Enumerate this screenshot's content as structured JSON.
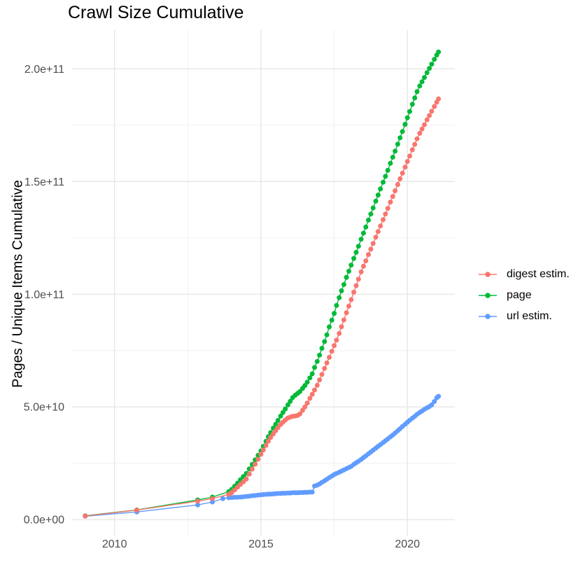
{
  "title": "Crawl Size Cumulative",
  "axes": {
    "x": {
      "range": [
        2008.55,
        2021.62
      ],
      "major_ticks": [
        {
          "value": 2010,
          "label": "2010"
        },
        {
          "value": 2015,
          "label": "2015"
        },
        {
          "value": 2020,
          "label": "2020"
        }
      ],
      "minor_ticks": [
        2012.5,
        2017.5
      ]
    },
    "y": {
      "label": "Pages / Unique Items Cumulative",
      "unit": "1e9 pages (axis labels in scientific notation)",
      "range": [
        -7.1,
        217.2
      ],
      "major_ticks": [
        {
          "value": 0,
          "label": "0.0e+00"
        },
        {
          "value": 50,
          "label": "5.0e+10"
        },
        {
          "value": 100,
          "label": "1.0e+11"
        },
        {
          "value": 150,
          "label": "1.5e+11"
        },
        {
          "value": 200,
          "label": "2.0e+11"
        }
      ],
      "minor_ticks": [
        25,
        75,
        125,
        175
      ]
    }
  },
  "legend": {
    "items": [
      {
        "label": "digest estim.",
        "color": "#F8766D"
      },
      {
        "label": "page",
        "color": "#00BA38"
      },
      {
        "label": "url estim.",
        "color": "#619CFF"
      }
    ]
  },
  "colors": {
    "digest": "#F8766D",
    "page": "#00BA38",
    "url": "#619CFF",
    "grid_major": "#e5e5e5",
    "grid_minor": "#f0f0f0"
  },
  "chart_data": {
    "type": "line",
    "title": "Crawl Size Cumulative",
    "xlabel": "",
    "ylabel": "Pages / Unique Items Cumulative",
    "value_unit": "billions (1e9) of pages / unique items",
    "xlim": [
      2008.55,
      2021.62
    ],
    "ylim_billions": [
      -7.1,
      217.2
    ],
    "grid": true,
    "legend_position": "right",
    "series": [
      {
        "name": "page",
        "color": "#00BA38",
        "points": [
          [
            2009.0,
            1.7
          ],
          [
            2010.76,
            4.3
          ],
          [
            2012.84,
            8.7
          ],
          [
            2013.34,
            10.0
          ],
          [
            2013.9,
            12.4
          ],
          [
            2014.0,
            13.4
          ],
          [
            2014.1,
            14.8
          ],
          [
            2014.2,
            16.2
          ],
          [
            2014.3,
            17.7
          ],
          [
            2014.4,
            19.1
          ],
          [
            2014.5,
            20.5
          ],
          [
            2014.6,
            22.5
          ],
          [
            2014.7,
            24.5
          ],
          [
            2014.8,
            26.5
          ],
          [
            2014.9,
            28.5
          ],
          [
            2015.0,
            30.5
          ],
          [
            2015.08,
            32.5
          ],
          [
            2015.17,
            34.7
          ],
          [
            2015.25,
            36.8
          ],
          [
            2015.33,
            38.6
          ],
          [
            2015.42,
            40.6
          ],
          [
            2015.5,
            42.3
          ],
          [
            2015.58,
            44.0
          ],
          [
            2015.67,
            45.9
          ],
          [
            2015.75,
            47.5
          ],
          [
            2015.83,
            49.1
          ],
          [
            2015.92,
            50.9
          ],
          [
            2016.0,
            52.5
          ],
          [
            2016.08,
            54.1
          ],
          [
            2016.17,
            55.2
          ],
          [
            2016.25,
            56.0
          ],
          [
            2016.33,
            56.8
          ],
          [
            2016.42,
            58.2
          ],
          [
            2016.5,
            59.5
          ],
          [
            2016.58,
            61.0
          ],
          [
            2016.67,
            62.9
          ],
          [
            2016.75,
            64.7
          ],
          [
            2016.83,
            67.5
          ],
          [
            2016.92,
            70.2
          ],
          [
            2017.0,
            73.0
          ],
          [
            2017.08,
            76.0
          ],
          [
            2017.17,
            79.0
          ],
          [
            2017.25,
            82.0
          ],
          [
            2017.33,
            85.5
          ],
          [
            2017.42,
            88.5
          ],
          [
            2017.5,
            91.5
          ],
          [
            2017.58,
            95.0
          ],
          [
            2017.67,
            98.5
          ],
          [
            2017.75,
            101.5
          ],
          [
            2017.83,
            104.3
          ],
          [
            2017.92,
            107.5
          ],
          [
            2018.0,
            110.2
          ],
          [
            2018.08,
            112.9
          ],
          [
            2018.17,
            115.9
          ],
          [
            2018.25,
            118.6
          ],
          [
            2018.33,
            121.3
          ],
          [
            2018.42,
            124.4
          ],
          [
            2018.5,
            127.1
          ],
          [
            2018.58,
            129.8
          ],
          [
            2018.67,
            132.9
          ],
          [
            2018.75,
            135.6
          ],
          [
            2018.83,
            138.3
          ],
          [
            2018.92,
            141.3
          ],
          [
            2019.0,
            144.0
          ],
          [
            2019.08,
            146.7
          ],
          [
            2019.17,
            149.7
          ],
          [
            2019.25,
            152.3
          ],
          [
            2019.33,
            155.0
          ],
          [
            2019.42,
            158.1
          ],
          [
            2019.5,
            160.8
          ],
          [
            2019.58,
            163.5
          ],
          [
            2019.67,
            166.6
          ],
          [
            2019.75,
            169.4
          ],
          [
            2019.83,
            172.2
          ],
          [
            2019.92,
            175.4
          ],
          [
            2020.0,
            178.3
          ],
          [
            2020.08,
            181.1
          ],
          [
            2020.17,
            184.3
          ],
          [
            2020.25,
            187.1
          ],
          [
            2020.33,
            189.9
          ],
          [
            2020.42,
            192.4
          ],
          [
            2020.5,
            194.3
          ],
          [
            2020.58,
            196.2
          ],
          [
            2020.67,
            198.3
          ],
          [
            2020.75,
            200.2
          ],
          [
            2020.83,
            202.1
          ],
          [
            2020.92,
            204.2
          ],
          [
            2021.0,
            206.1
          ],
          [
            2021.06,
            207.5
          ]
        ]
      },
      {
        "name": "url estim.",
        "color": "#619CFF",
        "points": [
          [
            2009.0,
            1.5
          ],
          [
            2010.76,
            3.4
          ],
          [
            2012.84,
            6.5
          ],
          [
            2013.34,
            7.8
          ],
          [
            2013.7,
            9.3
          ],
          [
            2013.9,
            9.7
          ],
          [
            2014.0,
            9.8
          ],
          [
            2014.1,
            9.9
          ],
          [
            2014.2,
            9.9
          ],
          [
            2014.3,
            10.0
          ],
          [
            2014.4,
            10.1
          ],
          [
            2014.5,
            10.3
          ],
          [
            2014.6,
            10.4
          ],
          [
            2014.7,
            10.6
          ],
          [
            2014.8,
            10.7
          ],
          [
            2014.9,
            10.9
          ],
          [
            2015.0,
            11.0
          ],
          [
            2015.08,
            11.1
          ],
          [
            2015.17,
            11.2
          ],
          [
            2015.25,
            11.3
          ],
          [
            2015.33,
            11.3
          ],
          [
            2015.42,
            11.4
          ],
          [
            2015.5,
            11.5
          ],
          [
            2015.58,
            11.6
          ],
          [
            2015.67,
            11.6
          ],
          [
            2015.75,
            11.7
          ],
          [
            2015.83,
            11.7
          ],
          [
            2015.92,
            11.8
          ],
          [
            2016.0,
            11.8
          ],
          [
            2016.08,
            11.9
          ],
          [
            2016.17,
            11.9
          ],
          [
            2016.25,
            11.9
          ],
          [
            2016.33,
            12.0
          ],
          [
            2016.42,
            12.0
          ],
          [
            2016.5,
            12.1
          ],
          [
            2016.58,
            12.1
          ],
          [
            2016.67,
            12.2
          ],
          [
            2016.75,
            12.2
          ],
          [
            2016.83,
            14.9
          ],
          [
            2016.92,
            15.3
          ],
          [
            2017.0,
            15.8
          ],
          [
            2017.08,
            16.5
          ],
          [
            2017.17,
            17.2
          ],
          [
            2017.25,
            17.9
          ],
          [
            2017.33,
            18.6
          ],
          [
            2017.42,
            19.3
          ],
          [
            2017.5,
            20.0
          ],
          [
            2017.58,
            20.5
          ],
          [
            2017.67,
            21.0
          ],
          [
            2017.75,
            21.5
          ],
          [
            2017.83,
            22.0
          ],
          [
            2017.92,
            22.6
          ],
          [
            2018.0,
            23.1
          ],
          [
            2018.08,
            23.6
          ],
          [
            2018.17,
            24.5
          ],
          [
            2018.25,
            25.2
          ],
          [
            2018.33,
            25.9
          ],
          [
            2018.42,
            26.7
          ],
          [
            2018.5,
            27.5
          ],
          [
            2018.58,
            28.3
          ],
          [
            2018.67,
            29.2
          ],
          [
            2018.75,
            30.0
          ],
          [
            2018.83,
            30.8
          ],
          [
            2018.92,
            31.7
          ],
          [
            2019.0,
            32.5
          ],
          [
            2019.08,
            33.3
          ],
          [
            2019.17,
            34.2
          ],
          [
            2019.25,
            35.0
          ],
          [
            2019.33,
            35.8
          ],
          [
            2019.42,
            36.7
          ],
          [
            2019.5,
            37.5
          ],
          [
            2019.58,
            38.4
          ],
          [
            2019.67,
            39.4
          ],
          [
            2019.75,
            40.3
          ],
          [
            2019.83,
            41.3
          ],
          [
            2019.92,
            42.3
          ],
          [
            2020.0,
            43.2
          ],
          [
            2020.08,
            44.1
          ],
          [
            2020.17,
            45.0
          ],
          [
            2020.25,
            45.8
          ],
          [
            2020.33,
            46.7
          ],
          [
            2020.42,
            47.5
          ],
          [
            2020.5,
            48.2
          ],
          [
            2020.58,
            48.9
          ],
          [
            2020.67,
            49.6
          ],
          [
            2020.75,
            50.2
          ],
          [
            2020.83,
            50.9
          ],
          [
            2020.92,
            52.4
          ],
          [
            2021.0,
            54.0
          ],
          [
            2021.06,
            54.7
          ]
        ]
      },
      {
        "name": "digest estim.",
        "color": "#F8766D",
        "points": [
          [
            2009.0,
            1.6
          ],
          [
            2010.76,
            4.2
          ],
          [
            2012.84,
            8.2
          ],
          [
            2013.34,
            9.3
          ],
          [
            2013.9,
            11.2
          ],
          [
            2014.0,
            12.0
          ],
          [
            2014.1,
            13.2
          ],
          [
            2014.2,
            14.4
          ],
          [
            2014.3,
            15.6
          ],
          [
            2014.4,
            16.8
          ],
          [
            2014.5,
            18.0
          ],
          [
            2014.6,
            20.2
          ],
          [
            2014.7,
            22.4
          ],
          [
            2014.8,
            24.6
          ],
          [
            2014.9,
            26.8
          ],
          [
            2015.0,
            29.0
          ],
          [
            2015.08,
            30.9
          ],
          [
            2015.17,
            32.9
          ],
          [
            2015.25,
            34.8
          ],
          [
            2015.33,
            36.5
          ],
          [
            2015.42,
            38.0
          ],
          [
            2015.5,
            39.4
          ],
          [
            2015.58,
            40.8
          ],
          [
            2015.67,
            42.2
          ],
          [
            2015.75,
            43.2
          ],
          [
            2015.83,
            44.2
          ],
          [
            2015.92,
            45.1
          ],
          [
            2016.0,
            45.5
          ],
          [
            2016.08,
            45.8
          ],
          [
            2016.17,
            46.0
          ],
          [
            2016.25,
            46.2
          ],
          [
            2016.33,
            46.9
          ],
          [
            2016.42,
            48.5
          ],
          [
            2016.5,
            50.0
          ],
          [
            2016.58,
            51.7
          ],
          [
            2016.67,
            53.8
          ],
          [
            2016.75,
            55.6
          ],
          [
            2016.83,
            57.5
          ],
          [
            2016.92,
            59.6
          ],
          [
            2017.0,
            62.0
          ],
          [
            2017.08,
            64.4
          ],
          [
            2017.17,
            67.1
          ],
          [
            2017.25,
            69.5
          ],
          [
            2017.33,
            72.0
          ],
          [
            2017.42,
            74.7
          ],
          [
            2017.5,
            77.2
          ],
          [
            2017.58,
            79.6
          ],
          [
            2017.67,
            82.6
          ],
          [
            2017.75,
            85.6
          ],
          [
            2017.83,
            88.6
          ],
          [
            2017.92,
            91.8
          ],
          [
            2018.0,
            94.7
          ],
          [
            2018.08,
            97.6
          ],
          [
            2018.17,
            100.9
          ],
          [
            2018.25,
            103.8
          ],
          [
            2018.33,
            106.7
          ],
          [
            2018.42,
            109.9
          ],
          [
            2018.5,
            112.4
          ],
          [
            2018.58,
            114.8
          ],
          [
            2018.67,
            117.6
          ],
          [
            2018.75,
            120.0
          ],
          [
            2018.83,
            122.5
          ],
          [
            2018.92,
            125.3
          ],
          [
            2019.0,
            127.8
          ],
          [
            2019.08,
            130.3
          ],
          [
            2019.17,
            133.1
          ],
          [
            2019.25,
            135.6
          ],
          [
            2019.33,
            138.1
          ],
          [
            2019.42,
            140.9
          ],
          [
            2019.5,
            143.4
          ],
          [
            2019.58,
            145.9
          ],
          [
            2019.67,
            148.7
          ],
          [
            2019.75,
            151.2
          ],
          [
            2019.83,
            153.7
          ],
          [
            2019.92,
            156.4
          ],
          [
            2020.0,
            158.9
          ],
          [
            2020.08,
            161.3
          ],
          [
            2020.17,
            164.1
          ],
          [
            2020.25,
            166.5
          ],
          [
            2020.33,
            169.0
          ],
          [
            2020.42,
            171.4
          ],
          [
            2020.5,
            173.3
          ],
          [
            2020.58,
            175.2
          ],
          [
            2020.67,
            177.4
          ],
          [
            2020.75,
            179.3
          ],
          [
            2020.83,
            181.2
          ],
          [
            2020.92,
            183.3
          ],
          [
            2021.0,
            185.2
          ],
          [
            2021.06,
            186.7
          ]
        ]
      }
    ]
  }
}
